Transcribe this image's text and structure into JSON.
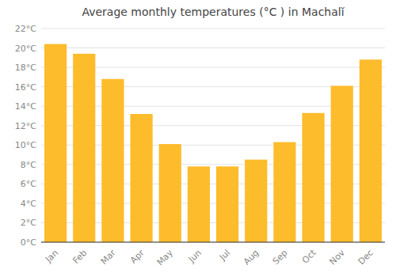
{
  "chart_data": {
    "type": "bar",
    "title": "Average monthly temperatures (°C ) in Machalĭ",
    "categories": [
      "Jan",
      "Feb",
      "Mar",
      "Apr",
      "May",
      "Jun",
      "Jul",
      "Aug",
      "Sep",
      "Oct",
      "Nov",
      "Dec"
    ],
    "values": [
      20.4,
      19.4,
      16.8,
      13.2,
      10.1,
      7.8,
      7.8,
      8.5,
      10.3,
      13.3,
      16.1,
      18.8
    ],
    "color": "#FDBC2C",
    "ylim": [
      0,
      22
    ],
    "yticks": [
      {
        "value": 0,
        "label": "0°C"
      },
      {
        "value": 2,
        "label": "2°C"
      },
      {
        "value": 4,
        "label": "4°C"
      },
      {
        "value": 6,
        "label": "6°C"
      },
      {
        "value": 8,
        "label": "8°C"
      },
      {
        "value": 10,
        "label": "10°C"
      },
      {
        "value": 12,
        "label": "12°C"
      },
      {
        "value": 14,
        "label": "14°C"
      },
      {
        "value": 16,
        "label": "16°C"
      },
      {
        "value": 18,
        "label": "18°C"
      },
      {
        "value": 20,
        "label": "20°C"
      },
      {
        "value": 22,
        "label": "22°C"
      }
    ],
    "grid": true
  }
}
